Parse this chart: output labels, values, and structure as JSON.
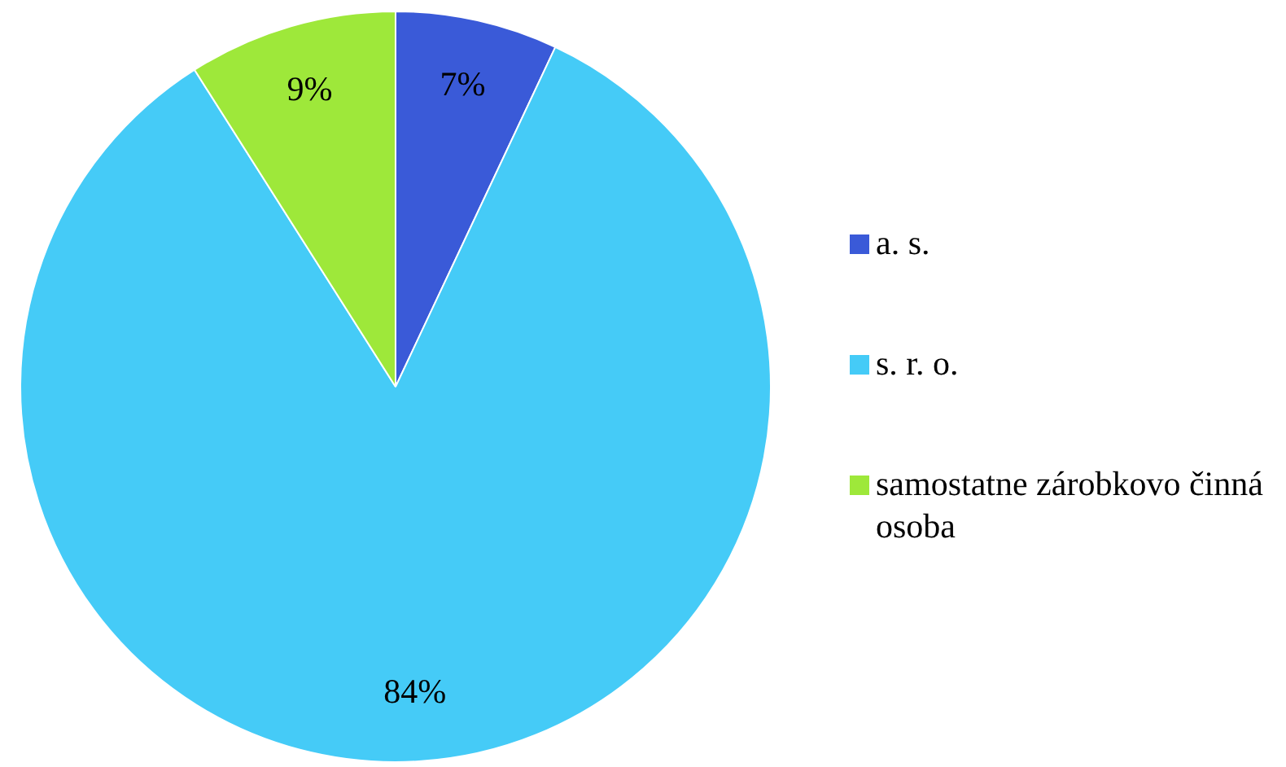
{
  "chart_data": {
    "type": "pie",
    "categories": [
      "a. s.",
      "s. r. o.",
      "samostatne zárobkovo činná osoba"
    ],
    "values": [
      7,
      84,
      9
    ],
    "colors": [
      "#3a5ad8",
      "#45cbf7",
      "#9ee83a"
    ],
    "value_labels": [
      "7%",
      "84%",
      "9%"
    ],
    "legend": "right"
  }
}
